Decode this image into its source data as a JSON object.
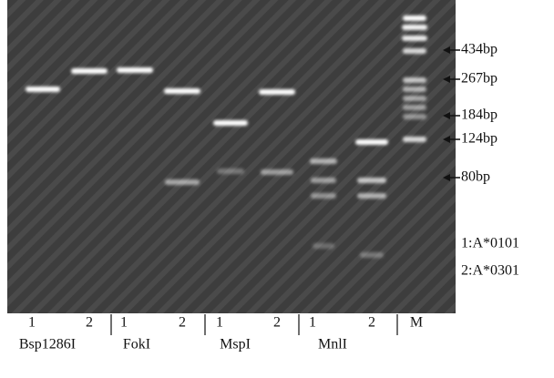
{
  "markers": [
    "434bp",
    "267bp",
    "184bp",
    "124bp",
    "80bp"
  ],
  "legend": [
    "1:A*0101",
    "2:A*0301"
  ],
  "lanes": [
    "1",
    "2",
    "1",
    "2",
    "1",
    "2",
    "1",
    "2",
    "M"
  ],
  "enzymes": [
    "Bsp1286I",
    "FokI",
    "MspI",
    "MnlI"
  ]
}
